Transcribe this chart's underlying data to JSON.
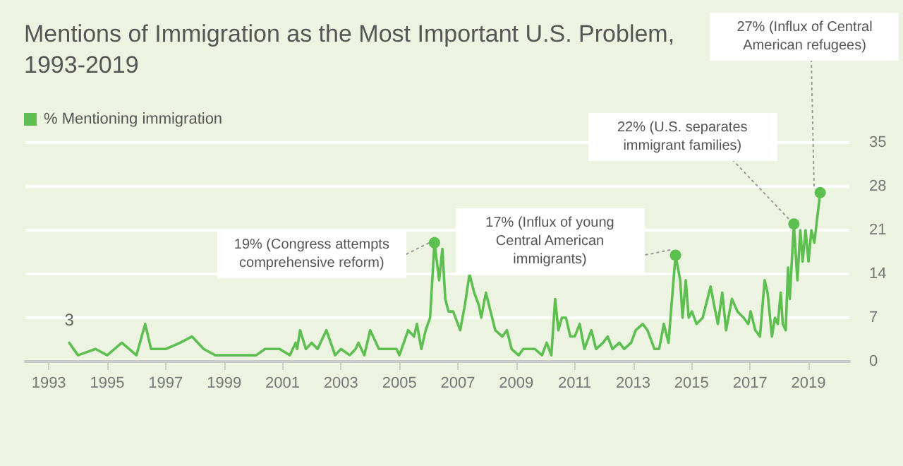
{
  "chart_data": {
    "type": "line",
    "title": "Mentions of Immigration as the Most Important U.S. Problem, 1993-2019",
    "x": [
      1993.7,
      1994.0,
      1994.6,
      1995.0,
      1995.5,
      1996.0,
      1996.3,
      1996.5,
      1997.0,
      1997.5,
      1997.9,
      1998.3,
      1998.7,
      2000.1,
      2000.4,
      2000.9,
      2001.25,
      2001.45,
      2001.5,
      2001.6,
      2001.8,
      2002.0,
      2002.2,
      2002.5,
      2002.8,
      2003.0,
      2003.3,
      2003.5,
      2003.6,
      2003.8,
      2004.0,
      2004.3,
      2004.9,
      2005.0,
      2005.3,
      2005.5,
      2005.6,
      2005.75,
      2005.9,
      2006.05,
      2006.2,
      2006.36,
      2006.47,
      2006.57,
      2006.68,
      2006.84,
      2007.08,
      2007.24,
      2007.4,
      2007.56,
      2007.72,
      2007.8,
      2007.96,
      2008.12,
      2008.28,
      2008.52,
      2008.68,
      2008.84,
      2009.08,
      2009.24,
      2009.64,
      2009.88,
      2010.04,
      2010.2,
      2010.33,
      2010.44,
      2010.56,
      2010.7,
      2010.85,
      2011.0,
      2011.17,
      2011.33,
      2011.57,
      2011.73,
      2011.97,
      2012.13,
      2012.29,
      2012.53,
      2012.69,
      2012.93,
      2013.09,
      2013.33,
      2013.49,
      2013.73,
      2013.89,
      2014.05,
      2014.21,
      2014.45,
      2014.61,
      2014.69,
      2014.8,
      2014.9,
      2015.01,
      2015.17,
      2015.38,
      2015.65,
      2015.77,
      2015.9,
      2016.05,
      2016.18,
      2016.38,
      2016.57,
      2016.78,
      2016.94,
      2017.02,
      2017.18,
      2017.34,
      2017.5,
      2017.6,
      2017.75,
      2017.85,
      2017.95,
      2018.05,
      2018.12,
      2018.22,
      2018.3,
      2018.36,
      2018.5,
      2018.62,
      2018.72,
      2018.8,
      2018.9,
      2019.0,
      2019.1,
      2019.2,
      2019.4
    ],
    "series": [
      {
        "name": "% Mentioning immigration",
        "color": "#5cbf4f",
        "values": [
          3,
          1,
          2,
          1,
          3,
          1,
          6,
          2,
          2,
          3,
          4,
          2,
          1,
          1,
          2,
          2,
          1,
          3,
          2,
          5,
          2,
          3,
          2,
          5,
          1,
          2,
          1,
          2,
          3,
          1,
          5,
          2,
          2,
          1,
          5,
          4,
          6,
          2,
          5,
          7,
          19,
          13,
          18,
          10,
          8,
          8,
          5,
          9,
          14,
          11,
          9,
          7,
          11,
          8,
          5,
          4,
          5,
          2,
          1,
          2,
          2,
          1,
          3,
          1,
          10,
          5,
          7,
          7,
          4,
          4,
          6,
          2,
          5,
          2,
          3,
          4,
          2,
          3,
          2,
          3,
          5,
          6,
          5,
          2,
          2,
          6,
          3,
          17,
          13,
          7,
          13,
          7,
          8,
          6,
          7,
          12,
          9,
          6,
          11,
          5,
          10,
          8,
          7,
          6,
          8,
          5,
          4,
          13,
          11,
          4,
          7,
          6,
          11,
          6,
          5,
          15,
          10,
          22,
          13,
          21,
          16,
          21,
          16,
          21,
          19,
          27
        ],
        "value_labels": [
          "3",
          null,
          null,
          null,
          null,
          null,
          null,
          null,
          null,
          null,
          null,
          null,
          null,
          null,
          null,
          null,
          null,
          null,
          null,
          null,
          null,
          null,
          null,
          null,
          null,
          null,
          null,
          null,
          null,
          null,
          null,
          null,
          null,
          null,
          null,
          null,
          null,
          null,
          null,
          null,
          null,
          null,
          null,
          null,
          null,
          null,
          null,
          null,
          null,
          null,
          null,
          null,
          null,
          null,
          null,
          null,
          null,
          null,
          null,
          null,
          null,
          null,
          null,
          null,
          null,
          null,
          null,
          null,
          null,
          null,
          null,
          null,
          null,
          null,
          null,
          null,
          null,
          null,
          null,
          null,
          null,
          null,
          null,
          null,
          null,
          null,
          null,
          null,
          null,
          null,
          null,
          null,
          null,
          null,
          null,
          null,
          null,
          null,
          null,
          null,
          null,
          null,
          null,
          null,
          null,
          null,
          null,
          null,
          null,
          null,
          null,
          null,
          null,
          null,
          null,
          null,
          null,
          null,
          null,
          null,
          null,
          null,
          null,
          null,
          null,
          null
        ]
      }
    ],
    "xlim": [
      1992.2,
      2020.4
    ],
    "xticks": [
      1993,
      1995,
      1997,
      1999,
      2001,
      2003,
      2005,
      2007,
      2009,
      2011,
      2013,
      2015,
      2017,
      2019
    ],
    "ylim": [
      0,
      35
    ],
    "yticks": [
      0,
      7,
      14,
      21,
      28,
      35
    ],
    "annotations": [
      {
        "text": "19% (Congress attempts comprehensive reform)",
        "x": 2006.2,
        "y": 19
      },
      {
        "text": "17% (Influx of young Central American immigrants)",
        "x": 2014.45,
        "y": 17
      },
      {
        "text": "22% (U.S. separates immigrant families)",
        "x": 2018.5,
        "y": 22
      },
      {
        "text": "27% (Influx of Central American refugees)",
        "x": 2019.4,
        "y": 27
      }
    ],
    "grid": "y",
    "legend": "top left",
    "marker": "none",
    "line_style": "solid"
  }
}
